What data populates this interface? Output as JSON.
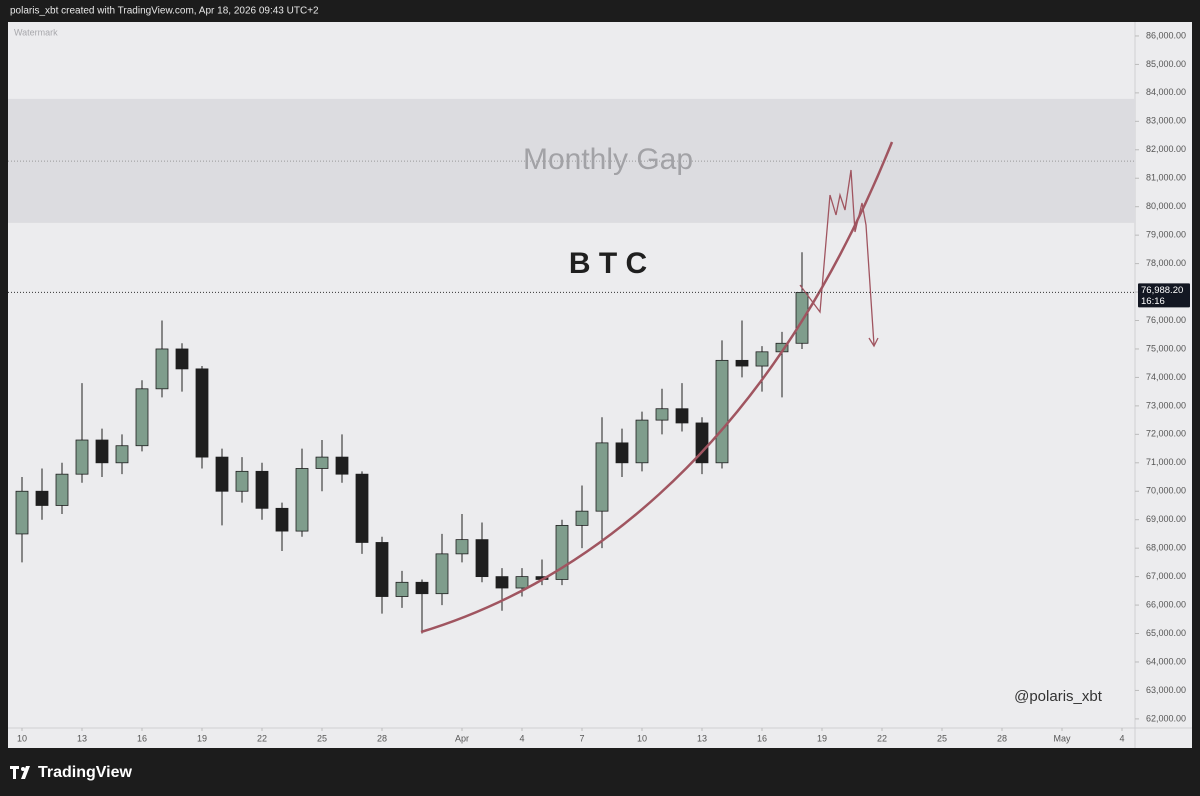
{
  "header": "polaris_xbt created with TradingView.com, Apr 18, 2026 09:43 UTC+2",
  "footer": {
    "brand": "TradingView"
  },
  "chart_data": {
    "type": "candlestick",
    "watermark": "Watermark",
    "title": "B T C",
    "signature": "@polaris_xbt",
    "up_color": "#7f9d8c",
    "down_color": "#1f1f1f",
    "curve_color": "#a05560",
    "zones": [
      {
        "label": "Monthly Gap",
        "from": 79430,
        "to": 83790,
        "mid": 81600
      }
    ],
    "last_price": {
      "value": 76988.2,
      "label": "76,988.20",
      "countdown": "16:16"
    },
    "x": [
      0,
      1,
      2,
      3,
      4,
      5,
      6,
      7,
      8,
      9,
      10,
      11,
      12,
      13,
      14,
      15,
      16,
      17,
      18,
      19,
      20,
      21,
      22,
      23,
      24,
      25,
      26,
      27,
      28,
      29,
      30,
      31,
      32,
      33,
      34,
      35,
      36,
      37,
      38,
      39
    ],
    "open": [
      68500,
      70000,
      69500,
      70600,
      71800,
      71000,
      71600,
      73600,
      75000,
      74300,
      71200,
      70000,
      70700,
      69400,
      68600,
      70800,
      71200,
      70600,
      68200,
      66300,
      66800,
      66400,
      67800,
      68300,
      67000,
      66600,
      67000,
      66900,
      68800,
      69300,
      71700,
      71000,
      72500,
      72900,
      72400,
      71000,
      74600,
      74400,
      74900,
      75200
    ],
    "high": [
      70500,
      70800,
      71000,
      73800,
      72200,
      72000,
      73900,
      76000,
      75200,
      74400,
      71500,
      71200,
      71000,
      69600,
      71500,
      71800,
      72000,
      70700,
      68400,
      67200,
      66900,
      68500,
      69200,
      68900,
      67300,
      67300,
      67600,
      69000,
      70200,
      72600,
      72200,
      72800,
      73600,
      73800,
      72600,
      75300,
      76000,
      75100,
      75600,
      78400
    ],
    "low": [
      67500,
      69000,
      69200,
      70300,
      70500,
      70600,
      71400,
      73300,
      73500,
      70800,
      68800,
      69600,
      69000,
      67900,
      68400,
      70000,
      70300,
      67800,
      65700,
      65900,
      65000,
      66000,
      67500,
      66800,
      65800,
      66300,
      66700,
      66700,
      68000,
      68000,
      70500,
      70700,
      72000,
      72100,
      70600,
      70800,
      74000,
      73500,
      73300,
      75000
    ],
    "close": [
      70000,
      69500,
      70600,
      71800,
      71000,
      71600,
      73600,
      75000,
      74300,
      71200,
      70000,
      70700,
      69400,
      68600,
      70800,
      71200,
      70600,
      68200,
      66300,
      66800,
      66400,
      67800,
      68300,
      67000,
      66600,
      67000,
      66900,
      68800,
      69300,
      71700,
      71000,
      72500,
      72900,
      72400,
      71000,
      74600,
      74400,
      74900,
      75200,
      76988.2
    ],
    "xlim": [
      -0.7,
      55.65
    ],
    "xticks": [
      {
        "value": 0,
        "label": "10"
      },
      {
        "value": 3,
        "label": "13"
      },
      {
        "value": 6,
        "label": "16"
      },
      {
        "value": 9,
        "label": "19"
      },
      {
        "value": 12,
        "label": "22"
      },
      {
        "value": 15,
        "label": "25"
      },
      {
        "value": 18,
        "label": "28"
      },
      {
        "value": 22,
        "label": "Apr"
      },
      {
        "value": 25,
        "label": "4"
      },
      {
        "value": 28,
        "label": "7"
      },
      {
        "value": 31,
        "label": "10"
      },
      {
        "value": 34,
        "label": "13"
      },
      {
        "value": 37,
        "label": "16"
      },
      {
        "value": 40,
        "label": "19"
      },
      {
        "value": 43,
        "label": "22"
      },
      {
        "value": 46,
        "label": "25"
      },
      {
        "value": 49,
        "label": "28"
      },
      {
        "value": 52,
        "label": "May"
      },
      {
        "value": 55,
        "label": "4"
      }
    ],
    "ylim": [
      61680,
      86350
    ],
    "yticks": [
      {
        "value": 62000,
        "label": "62,000.00"
      },
      {
        "value": 63000,
        "label": "63,000.00"
      },
      {
        "value": 64000,
        "label": "64,000.00"
      },
      {
        "value": 65000,
        "label": "65,000.00"
      },
      {
        "value": 66000,
        "label": "66,000.00"
      },
      {
        "value": 67000,
        "label": "67,000.00"
      },
      {
        "value": 68000,
        "label": "68,000.00"
      },
      {
        "value": 69000,
        "label": "69,000.00"
      },
      {
        "value": 70000,
        "label": "70,000.00"
      },
      {
        "value": 71000,
        "label": "71,000.00"
      },
      {
        "value": 72000,
        "label": "72,000.00"
      },
      {
        "value": 73000,
        "label": "73,000.00"
      },
      {
        "value": 74000,
        "label": "74,000.00"
      },
      {
        "value": 75000,
        "label": "75,000.00"
      },
      {
        "value": 76000,
        "label": "76,000.00"
      },
      {
        "value": 77000,
        "label": "77,000.00"
      },
      {
        "value": 78000,
        "label": "78,000.00"
      },
      {
        "value": 79000,
        "label": "79,000.00"
      },
      {
        "value": 80000,
        "label": "80,000.00"
      },
      {
        "value": 81000,
        "label": "81,000.00"
      },
      {
        "value": 82000,
        "label": "82,000.00"
      },
      {
        "value": 83000,
        "label": "83,000.00"
      },
      {
        "value": 84000,
        "label": "84,000.00"
      },
      {
        "value": 85000,
        "label": "85,000.00"
      },
      {
        "value": 86000,
        "label": "86,000.00"
      }
    ]
  }
}
